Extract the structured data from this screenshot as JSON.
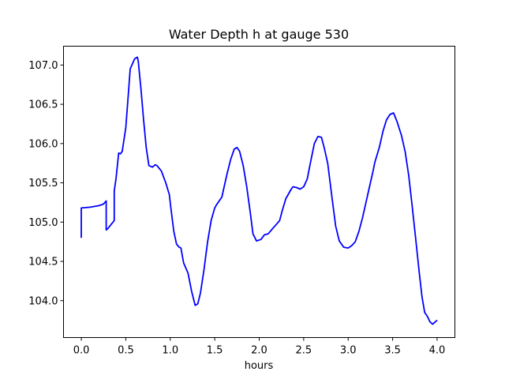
{
  "chart_data": {
    "type": "line",
    "title": "Water Depth h at gauge 530",
    "xlabel": "hours",
    "ylabel": "",
    "xlim": [
      -0.2,
      4.2
    ],
    "ylim": [
      103.53,
      107.24
    ],
    "xticks": [
      0.0,
      0.5,
      1.0,
      1.5,
      2.0,
      2.5,
      3.0,
      3.5,
      4.0
    ],
    "xtick_labels": [
      "0.0",
      "0.5",
      "1.0",
      "1.5",
      "2.0",
      "2.5",
      "3.0",
      "3.5",
      "4.0"
    ],
    "yticks": [
      104.0,
      104.5,
      105.0,
      105.5,
      106.0,
      106.5,
      107.0
    ],
    "ytick_labels": [
      "104.0",
      "104.5",
      "105.0",
      "105.5",
      "106.0",
      "106.5",
      "107.0"
    ],
    "grid": false,
    "series": [
      {
        "color": "#0000ff",
        "x": [
          0.0,
          0.0,
          0.1,
          0.2,
          0.25,
          0.28,
          0.28,
          0.3,
          0.37,
          0.37,
          0.39,
          0.42,
          0.44,
          0.46,
          0.5,
          0.53,
          0.55,
          0.6,
          0.63,
          0.64,
          0.67,
          0.7,
          0.73,
          0.76,
          0.8,
          0.83,
          0.85,
          0.9,
          0.95,
          0.99,
          1.01,
          1.04,
          1.07,
          1.1,
          1.12,
          1.15,
          1.2,
          1.24,
          1.28,
          1.31,
          1.34,
          1.38,
          1.42,
          1.46,
          1.5,
          1.52,
          1.58,
          1.6,
          1.64,
          1.68,
          1.72,
          1.75,
          1.78,
          1.82,
          1.86,
          1.9,
          1.93,
          1.97,
          2.02,
          2.06,
          2.1,
          2.16,
          2.2,
          2.23,
          2.26,
          2.3,
          2.36,
          2.38,
          2.42,
          2.46,
          2.5,
          2.54,
          2.58,
          2.62,
          2.66,
          2.7,
          2.73,
          2.77,
          2.82,
          2.86,
          2.9,
          2.95,
          3.0,
          3.04,
          3.08,
          3.12,
          3.16,
          3.2,
          3.24,
          3.28,
          3.3,
          3.35,
          3.39,
          3.43,
          3.47,
          3.51,
          3.55,
          3.6,
          3.64,
          3.68,
          3.72,
          3.76,
          3.8,
          3.83,
          3.86,
          3.89,
          3.92,
          3.95,
          3.97,
          4.0
        ],
        "y": [
          104.8,
          105.18,
          105.19,
          105.21,
          105.23,
          105.27,
          104.9,
          104.92,
          105.02,
          105.4,
          105.55,
          105.88,
          105.87,
          105.9,
          106.2,
          106.65,
          106.95,
          107.08,
          107.1,
          107.05,
          106.7,
          106.3,
          105.95,
          105.72,
          105.7,
          105.73,
          105.72,
          105.65,
          105.5,
          105.35,
          105.15,
          104.88,
          104.72,
          104.68,
          104.67,
          104.48,
          104.35,
          104.12,
          103.94,
          103.96,
          104.1,
          104.4,
          104.75,
          105.02,
          105.18,
          105.22,
          105.32,
          105.42,
          105.62,
          105.8,
          105.93,
          105.95,
          105.9,
          105.72,
          105.45,
          105.12,
          104.85,
          104.76,
          104.78,
          104.84,
          104.85,
          104.93,
          104.98,
          105.02,
          105.15,
          105.3,
          105.42,
          105.45,
          105.44,
          105.42,
          105.45,
          105.55,
          105.78,
          106.0,
          106.09,
          106.08,
          105.95,
          105.75,
          105.3,
          104.95,
          104.76,
          104.68,
          104.67,
          104.7,
          104.75,
          104.88,
          105.05,
          105.25,
          105.45,
          105.65,
          105.76,
          105.95,
          106.15,
          106.3,
          106.37,
          106.39,
          106.28,
          106.1,
          105.9,
          105.6,
          105.2,
          104.78,
          104.35,
          104.05,
          103.85,
          103.8,
          103.73,
          103.7,
          103.72,
          103.75
        ]
      }
    ]
  }
}
